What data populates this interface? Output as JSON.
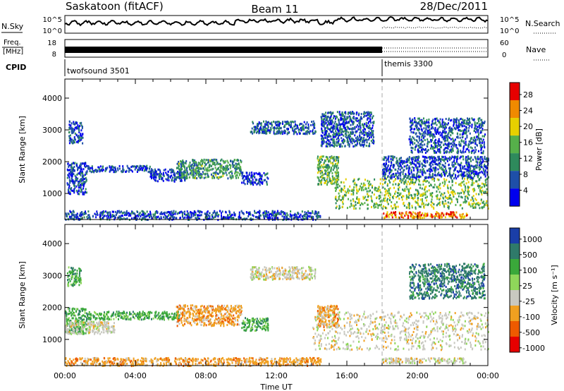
{
  "header": {
    "station": "Saskatoon (fitACF)",
    "beam": "Beam 11",
    "date": "28/Dec/2011"
  },
  "nsky_panel": {
    "left_label": "N.Sky",
    "right_label": "N.Search",
    "left_ticks": [
      "10^5",
      "10^0"
    ],
    "right_ticks": [
      "10^5",
      "10^0"
    ]
  },
  "freq_panel": {
    "left_label_line1": "Freq.",
    "left_label_line2": "[MHz]",
    "right_label": "Nave",
    "left_ticks": [
      "18",
      "8"
    ],
    "right_ticks": [
      "60",
      "0"
    ]
  },
  "cpid_panel": {
    "label": "CPID",
    "segments": [
      {
        "name": "twofsound 3501",
        "start_hour": 0
      },
      {
        "name": "themis 3300",
        "start_hour": 18
      }
    ]
  },
  "x_axis": {
    "label": "Time UT",
    "range_hours": [
      0,
      24
    ],
    "tick_labels": [
      "00:00",
      "04:00",
      "08:00",
      "12:00",
      "16:00",
      "20:00",
      "00:00"
    ]
  },
  "chart_data": [
    {
      "type": "heatmap",
      "name": "power",
      "ylabel": "Slant Range [km]",
      "xlabel": "Time UT",
      "xlim": [
        0,
        24
      ],
      "ylim": [
        180,
        4600
      ],
      "y_tick_labels": [
        "1000",
        "2000",
        "3000",
        "4000"
      ],
      "y_ticks": [
        1000,
        2000,
        3000,
        4000
      ],
      "colorbar": {
        "label": "Power [dB]",
        "tick_labels": [
          "4",
          "8",
          "12",
          "16",
          "20",
          "24",
          "28"
        ],
        "ticks": [
          4,
          8,
          12,
          16,
          20,
          24,
          28
        ],
        "range": [
          0,
          31
        ],
        "colors": [
          "#0000ee",
          "#1e4fa8",
          "#2e8a5c",
          "#56b04a",
          "#e7d000",
          "#f08a00",
          "#e60000"
        ]
      },
      "scatter_regions": [
        {
          "t": [
            0.1,
            1.2
          ],
          "r": [
            1000,
            2000
          ],
          "level": 6
        },
        {
          "t": [
            0.2,
            1.0
          ],
          "r": [
            2600,
            3300
          ],
          "level": 7
        },
        {
          "t": [
            1.2,
            4.8
          ],
          "r": [
            1700,
            1900
          ],
          "level": 5
        },
        {
          "t": [
            4.8,
            6.8
          ],
          "r": [
            1400,
            1800
          ],
          "level": 5
        },
        {
          "t": [
            6.3,
            10.0
          ],
          "r": [
            1500,
            2100
          ],
          "level": 12
        },
        {
          "t": [
            10.0,
            11.5
          ],
          "r": [
            1300,
            1700
          ],
          "level": 5
        },
        {
          "t": [
            10.5,
            14.2
          ],
          "r": [
            2900,
            3300
          ],
          "level": 7
        },
        {
          "t": [
            14.3,
            15.5
          ],
          "r": [
            1300,
            2200
          ],
          "level": 14
        },
        {
          "t": [
            14.5,
            17.5
          ],
          "r": [
            2500,
            3600
          ],
          "level": 7
        },
        {
          "t": [
            15.3,
            24.0
          ],
          "r": [
            550,
            1500
          ],
          "level": 16
        },
        {
          "t": [
            18.0,
            24.0
          ],
          "r": [
            1500,
            2200
          ],
          "level": 6
        },
        {
          "t": [
            18.0,
            22.8
          ],
          "r": [
            250,
            450
          ],
          "level": 25
        },
        {
          "t": [
            19.5,
            23.8
          ],
          "r": [
            2300,
            3400
          ],
          "level": 7
        },
        {
          "t": [
            0.0,
            14.5
          ],
          "r": [
            200,
            480
          ],
          "level": 6
        }
      ]
    },
    {
      "type": "heatmap",
      "name": "velocity",
      "ylabel": "Slant Range [km]",
      "xlabel": "Time UT",
      "xlim": [
        0,
        24
      ],
      "ylim": [
        180,
        4600
      ],
      "y_tick_labels": [
        "1000",
        "2000",
        "3000",
        "4000"
      ],
      "y_ticks": [
        1000,
        2000,
        3000,
        4000
      ],
      "colorbar": {
        "label": "Velocity [m s⁻¹]",
        "tick_labels": [
          "1000",
          "500",
          "100",
          "25",
          "-25",
          "-100",
          "-500",
          "-1000"
        ],
        "colors": [
          "#1a3ea8",
          "#2f7a6a",
          "#3aa83a",
          "#8fd65a",
          "#c8c8c0",
          "#f0a020",
          "#ee5a00",
          "#e60000"
        ]
      },
      "scatter_regions": [
        {
          "t": [
            0.0,
            1.2
          ],
          "r": [
            1200,
            2000
          ],
          "level": "100"
        },
        {
          "t": [
            0.1,
            0.9
          ],
          "r": [
            2700,
            3300
          ],
          "level": "100"
        },
        {
          "t": [
            0.0,
            2.8
          ],
          "r": [
            1200,
            1600
          ],
          "level": "-25"
        },
        {
          "t": [
            1.2,
            6.5
          ],
          "r": [
            1650,
            1900
          ],
          "level": "100"
        },
        {
          "t": [
            6.3,
            10.0
          ],
          "r": [
            1450,
            2100
          ],
          "level": "-100"
        },
        {
          "t": [
            10.0,
            11.5
          ],
          "r": [
            1300,
            1700
          ],
          "level": "100"
        },
        {
          "t": [
            10.5,
            14.2
          ],
          "r": [
            2900,
            3300
          ],
          "level": "-25"
        },
        {
          "t": [
            14.3,
            15.5
          ],
          "r": [
            1400,
            2100
          ],
          "level": "-100"
        },
        {
          "t": [
            14.0,
            24.0
          ],
          "r": [
            700,
            1900
          ],
          "level": "-25"
        },
        {
          "t": [
            18.0,
            22.8
          ],
          "r": [
            280,
            450
          ],
          "level": "-25"
        },
        {
          "t": [
            19.5,
            23.8
          ],
          "r": [
            2300,
            3400
          ],
          "level": "500"
        },
        {
          "t": [
            0.0,
            14.5
          ],
          "r": [
            200,
            450
          ],
          "level": "-100"
        }
      ]
    }
  ]
}
